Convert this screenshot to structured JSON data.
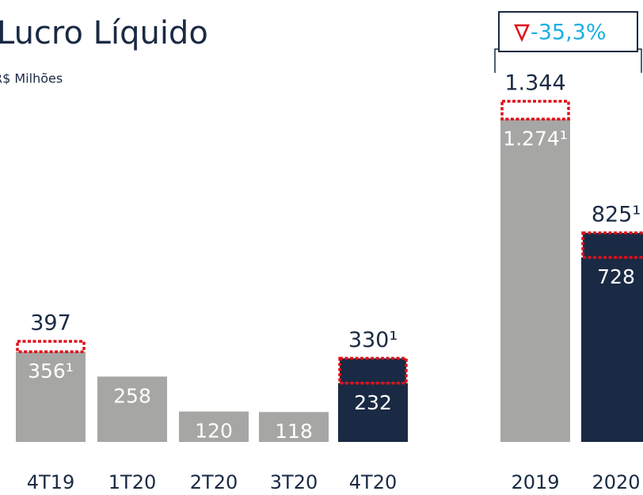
{
  "chart_data": [
    {
      "type": "bar",
      "title": "Lucro Líquido",
      "subtitle": "R$ Milhões",
      "categories": [
        "4T19",
        "1T20",
        "2T20",
        "3T20",
        "4T20"
      ],
      "values": [
        356,
        258,
        120,
        118,
        232
      ],
      "value_labels": [
        "356¹",
        "258",
        "120",
        "118",
        "232"
      ],
      "totals": [
        397,
        null,
        null,
        null,
        330
      ],
      "total_labels": [
        "397",
        null,
        null,
        null,
        "330¹"
      ],
      "colors": [
        "#a6a6a4",
        "#a6a6a4",
        "#a6a6a4",
        "#a6a6a4",
        "#1a2a44"
      ],
      "box_colors": [
        "#ffffff",
        null,
        null,
        null,
        "#1a2a44"
      ],
      "ylim": [
        0,
        1400
      ]
    },
    {
      "type": "bar",
      "categories": [
        "2019",
        "2020"
      ],
      "values": [
        1274,
        728
      ],
      "value_labels": [
        "1.274¹",
        "728"
      ],
      "totals": [
        1344,
        825
      ],
      "total_labels": [
        "1.344",
        "825¹"
      ],
      "colors": [
        "#a6a6a4",
        "#1a2a44"
      ],
      "box_colors": [
        "#ffffff",
        "#1a2a44"
      ],
      "change_label": "-35,3%",
      "ylim": [
        0,
        1400
      ]
    }
  ]
}
